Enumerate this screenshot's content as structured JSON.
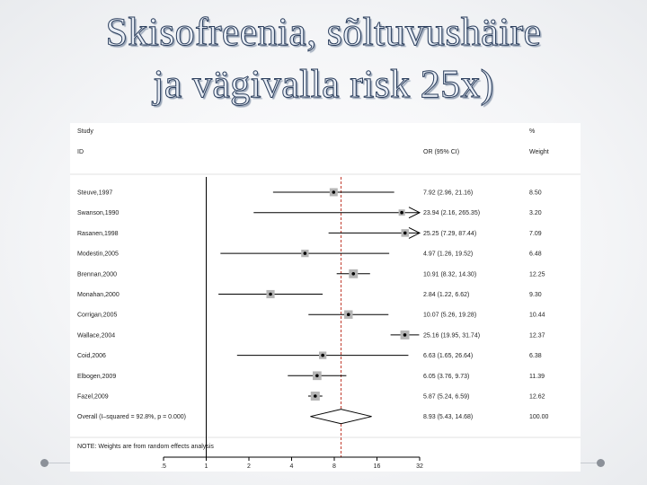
{
  "title_line1": "Skisofreenia, sõltuvushäire",
  "title_line2": "ja vägivalla risk 25x)",
  "chart_data": {
    "type": "forest",
    "header": {
      "study": "Study",
      "id": "ID",
      "or_ci": "OR (95% CI)",
      "pct": "%",
      "weight": "Weight"
    },
    "x_scale": "log",
    "xlim": [
      0.5,
      32
    ],
    "x_ticks": [
      {
        "value": 0.5,
        "label": ".5"
      },
      {
        "value": 1,
        "label": "1"
      },
      {
        "value": 2,
        "label": "2"
      },
      {
        "value": 4,
        "label": "4"
      },
      {
        "value": 8,
        "label": "8"
      },
      {
        "value": 16,
        "label": "16"
      },
      {
        "value": 32,
        "label": "32"
      }
    ],
    "null_line": 1,
    "pooled_line": 8.93,
    "studies": [
      {
        "id": "Steuve,1997",
        "or": 7.92,
        "lo": 2.96,
        "hi": 21.16,
        "ci_text": "7.92 (2.96, 21.16)",
        "weight": "8.50"
      },
      {
        "id": "Swanson,1990",
        "or": 23.94,
        "lo": 2.16,
        "hi": 265.35,
        "ci_text": "23.94 (2.16, 265.35)",
        "weight": "3.20"
      },
      {
        "id": "Rasanen,1998",
        "or": 25.25,
        "lo": 7.29,
        "hi": 87.44,
        "ci_text": "25.25 (7.29, 87.44)",
        "weight": "7.09"
      },
      {
        "id": "Modestin,2005",
        "or": 4.97,
        "lo": 1.26,
        "hi": 19.52,
        "ci_text": "4.97 (1.26, 19.52)",
        "weight": "6.48"
      },
      {
        "id": "Brennan,2000",
        "or": 10.91,
        "lo": 8.32,
        "hi": 14.3,
        "ci_text": "10.91 (8.32, 14.30)",
        "weight": "12.25"
      },
      {
        "id": "Monahan,2000",
        "or": 2.84,
        "lo": 1.22,
        "hi": 6.62,
        "ci_text": "2.84 (1.22, 6.62)",
        "weight": "9.30"
      },
      {
        "id": "Corrigan,2005",
        "or": 10.07,
        "lo": 5.26,
        "hi": 19.28,
        "ci_text": "10.07 (5.26, 19.28)",
        "weight": "10.44"
      },
      {
        "id": "Wallace,2004",
        "or": 25.16,
        "lo": 19.95,
        "hi": 31.74,
        "ci_text": "25.16 (19.95, 31.74)",
        "weight": "12.37"
      },
      {
        "id": "Coid,2006",
        "or": 6.63,
        "lo": 1.65,
        "hi": 26.64,
        "ci_text": "6.63 (1.65, 26.64)",
        "weight": "6.38"
      },
      {
        "id": "Elbogen,2009",
        "or": 6.05,
        "lo": 3.76,
        "hi": 9.73,
        "ci_text": "6.05 (3.76, 9.73)",
        "weight": "11.39"
      },
      {
        "id": "Fazel,2009",
        "or": 5.87,
        "lo": 5.24,
        "hi": 6.59,
        "ci_text": "5.87 (5.24, 6.59)",
        "weight": "12.62"
      }
    ],
    "overall": {
      "id": "Overall  (I–squared = 92.8%, p = 0.000)",
      "or": 8.93,
      "lo": 5.43,
      "hi": 14.68,
      "ci_text": "8.93 (5.43, 14.68)",
      "weight": "100.00"
    },
    "note": "NOTE: Weights are from random effects analysis"
  }
}
